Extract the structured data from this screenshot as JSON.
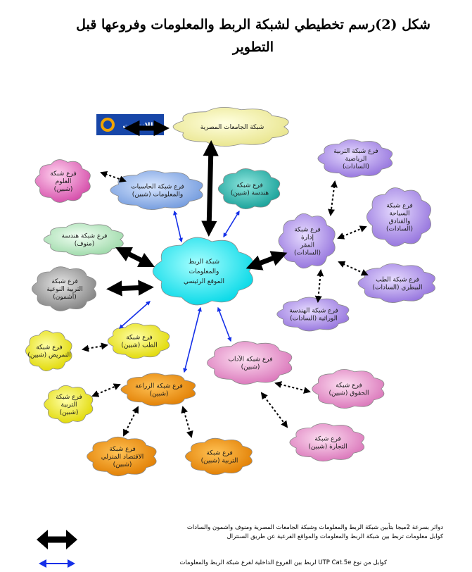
{
  "title_line1": "شكل (2)رسم تخطيطي لشبكة الربط والمعلومات وفروعها قبل",
  "title_line2": "التطوير",
  "logo_text": "الانترنت",
  "clouds": {
    "egypt_uni": "شبكة الجامعات المصرية",
    "main": [
      "شبكة الربط",
      "والمعلومات",
      "الموقع الرئيسي"
    ],
    "computers": [
      "فرع شبكة الحاسبات",
      "والمعلومات (شبين)"
    ],
    "engineering_shebin": [
      "فرع شبكة",
      "هندسة (شبين)"
    ],
    "science": [
      "فرع شبكة",
      "العلوم",
      "(شبين)"
    ],
    "eng_menouf": [
      "فرع شبكة هندسة",
      "(منوف)"
    ],
    "specific_edu": [
      "فرع شبكة",
      "التربية النوعية",
      "(أشمون)"
    ],
    "admin_sadat": [
      "فرع شبكة",
      "إدارة",
      "المقر",
      "(السادات)"
    ],
    "phys_edu": [
      "فرع شبكة التربية",
      "الرياضية",
      "(السادات)"
    ],
    "tourism": [
      "فرع شبكة",
      "السياحة",
      "والفنادق",
      "(السادات)"
    ],
    "vet": [
      "فرع شبكة الطب",
      "البيطري (السادات)"
    ],
    "genetic_eng": [
      "فرع شبكة الهندسة",
      "الوراثية (السادات)"
    ],
    "arts": [
      "فرع شبكة الآداب",
      "(شبين)"
    ],
    "law": [
      "فرع شبكة",
      "الحقوق (شبين)"
    ],
    "commerce": [
      "فرع شبكة",
      "التجارة (شبين)"
    ],
    "medicine": [
      "فرع شبكة",
      "الطب (شبين)"
    ],
    "nursing": [
      "فرع شبكة",
      "التمريض (شبين)"
    ],
    "education": [
      "فرع شبكة",
      "التربية",
      "(شبين)"
    ],
    "agriculture": [
      "فرع شبكة الزراعة",
      "(شبين)"
    ],
    "home_econ": [
      "فرع شبكة",
      "الاقتصاد المنزلي",
      "(شبين)"
    ],
    "edu_shebin": [
      "فرع شبكة",
      "التربية (شبين)"
    ]
  },
  "legend": {
    "black_line1": "دوائر بسرعة 2ميجا بتأبين شبكة الربط والمعلومات وشبكة الجامعات المصرية ومنوف واشمون والسادات",
    "black_line2": "كوابل معلومات تربط بين شبكة الربط والمعلومات والمواقع الفرعية عن طريق السنترال",
    "blue_line": "كوابل من نوع UTP Cat.5e لربط بين الفروع الداخلية لفرع شبكة الربط والمعلومات"
  },
  "colors": {
    "main": "#00e6ee",
    "yellow_top": "#f2f0a8",
    "blue": "#8fb3ec",
    "teal": "#22b7ae",
    "pink": "#f07fc4",
    "green": "#bfeec8",
    "gray": "#a8a8a8",
    "purple": "#b595ee",
    "yellow": "#f2ef00",
    "orange": "#f08e00",
    "rose": "#ea90cc"
  }
}
